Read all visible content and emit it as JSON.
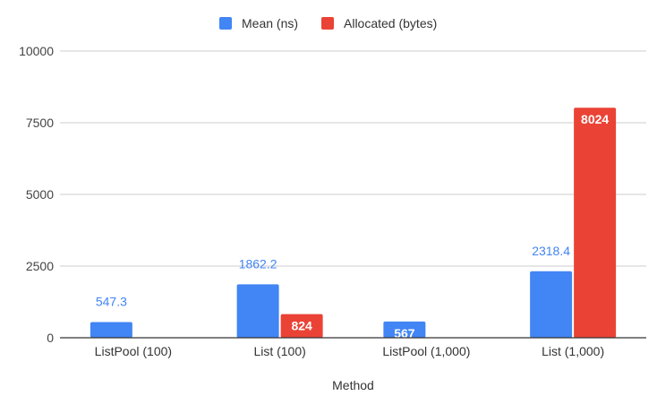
{
  "chart_data": {
    "type": "bar",
    "title": "",
    "xlabel": "Method",
    "ylabel": "",
    "ylim": [
      0,
      10000
    ],
    "yticks": [
      0,
      2500,
      5000,
      7500,
      10000
    ],
    "grid": true,
    "legend_position": "top",
    "categories": [
      "ListPool (100)",
      "List (100)",
      "ListPool (1,000)",
      "List (1,000)"
    ],
    "series": [
      {
        "name": "Mean (ns)",
        "color": "#4285f4",
        "values": [
          547.3,
          1862.2,
          567,
          2318.4
        ],
        "labels": [
          "547.3",
          "1862.2",
          "567",
          "2318.4"
        ],
        "label_style": [
          "outside",
          "outside",
          "inside",
          "outside"
        ]
      },
      {
        "name": "Allocated (bytes)",
        "color": "#ea4335",
        "values": [
          0,
          824,
          0,
          8024
        ],
        "labels": [
          "",
          "824",
          "",
          "8024"
        ],
        "label_style": [
          "none",
          "inside",
          "none",
          "inside"
        ]
      }
    ]
  }
}
